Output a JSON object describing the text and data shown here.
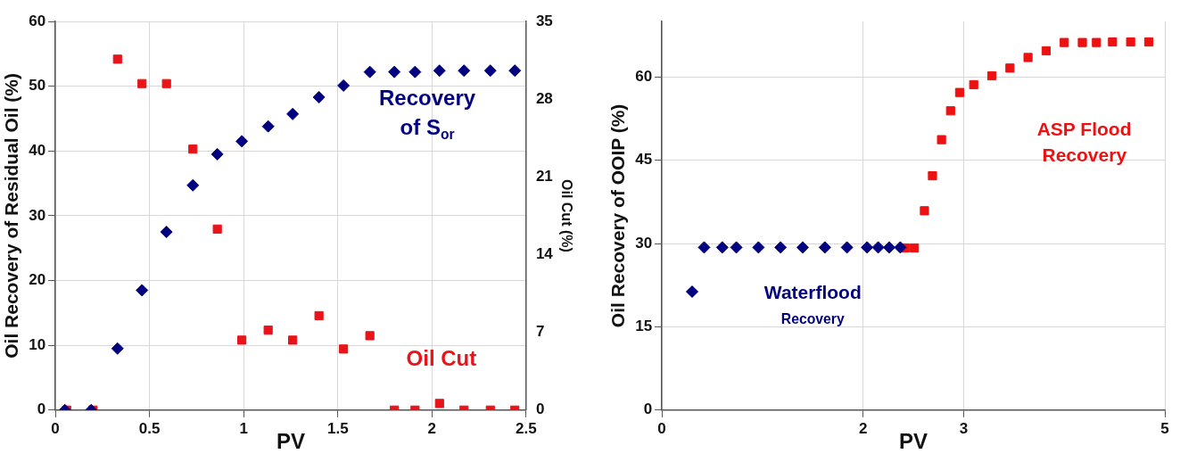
{
  "chart_data": [
    {
      "type": "scatter",
      "xlabel": "PV",
      "ylabel": "Oil Recovery of Residual Oil (%)",
      "y2label": "Oil Cut (%)",
      "xlim": [
        0,
        2.5
      ],
      "xticks": [
        0,
        0.5,
        1,
        1.5,
        2,
        2.5
      ],
      "ylim": [
        0,
        60
      ],
      "yticks": [
        0,
        10,
        20,
        30,
        40,
        50,
        60
      ],
      "y2lim": [
        0,
        35
      ],
      "y2ticks": [
        0,
        7,
        14,
        21,
        28,
        35
      ],
      "grid": true,
      "legend": false,
      "series": [
        {
          "name": "Recovery of S$_{or}$",
          "color": "#000080",
          "marker": "diamond",
          "x": [
            0.05,
            0.19,
            0.33,
            0.46,
            0.59,
            0.73,
            0.86,
            0.99,
            1.13,
            1.26,
            1.4,
            1.53,
            1.67,
            1.8,
            1.91,
            2.04,
            2.17,
            2.31,
            2.44
          ],
          "values": [
            0,
            0,
            9.5,
            18.5,
            27.5,
            34.7,
            39.5,
            41.5,
            43.8,
            45.7,
            48.3,
            50.1,
            52.2,
            52.2,
            52.2,
            52.4,
            52.4,
            52.4,
            52.4
          ]
        },
        {
          "name": "Oil Cut",
          "color": "#e8141a",
          "marker": "square",
          "axis": "y2",
          "x": [
            0.06,
            0.2,
            0.33,
            0.46,
            0.59,
            0.73,
            0.86,
            0.99,
            1.13,
            1.26,
            1.4,
            1.53,
            1.67,
            1.8,
            1.91,
            2.04,
            2.17,
            2.31,
            2.44
          ],
          "values": [
            0,
            0,
            31.6,
            29.4,
            29.4,
            23.5,
            16.3,
            6.3,
            7.2,
            6.3,
            8.5,
            5.5,
            6.7,
            0,
            0,
            0.6,
            0,
            0,
            0
          ]
        }
      ]
    },
    {
      "type": "scatter",
      "xlabel": "PV",
      "ylabel": "Oil Recovery of OOIP (%)",
      "xlim": [
        0,
        5
      ],
      "xticks": [
        0,
        2,
        3,
        5
      ],
      "ylim": [
        0,
        70
      ],
      "yticks": [
        0,
        15,
        30,
        45,
        60
      ],
      "grid": true,
      "legend": false,
      "series": [
        {
          "name": "Waterflood Recovery",
          "color": "#000080",
          "marker": "diamond",
          "x": [
            0.42,
            0.6,
            0.74,
            0.96,
            1.18,
            1.4,
            1.62,
            1.84,
            2.04,
            2.15,
            2.26,
            2.37
          ],
          "values": [
            29.3,
            29.3,
            29.3,
            29.3,
            29.3,
            29.3,
            29.3,
            29.3,
            29.3,
            29.3,
            29.3,
            29.3
          ]
        },
        {
          "name": "ASP Flood Recovery",
          "color": "#ee1111",
          "marker": "square",
          "x": [
            2.42,
            2.51,
            2.61,
            2.69,
            2.78,
            2.87,
            2.96,
            3.1,
            3.28,
            3.46,
            3.64,
            3.82,
            4.0,
            4.18,
            4.32,
            4.48,
            4.66,
            4.84
          ],
          "values": [
            29.2,
            29.2,
            35.9,
            42.2,
            48.7,
            53.9,
            57.2,
            58.6,
            60.2,
            61.6,
            63.5,
            64.7,
            66.2,
            66.2,
            66.2,
            66.3,
            66.3,
            66.3
          ]
        }
      ]
    }
  ]
}
